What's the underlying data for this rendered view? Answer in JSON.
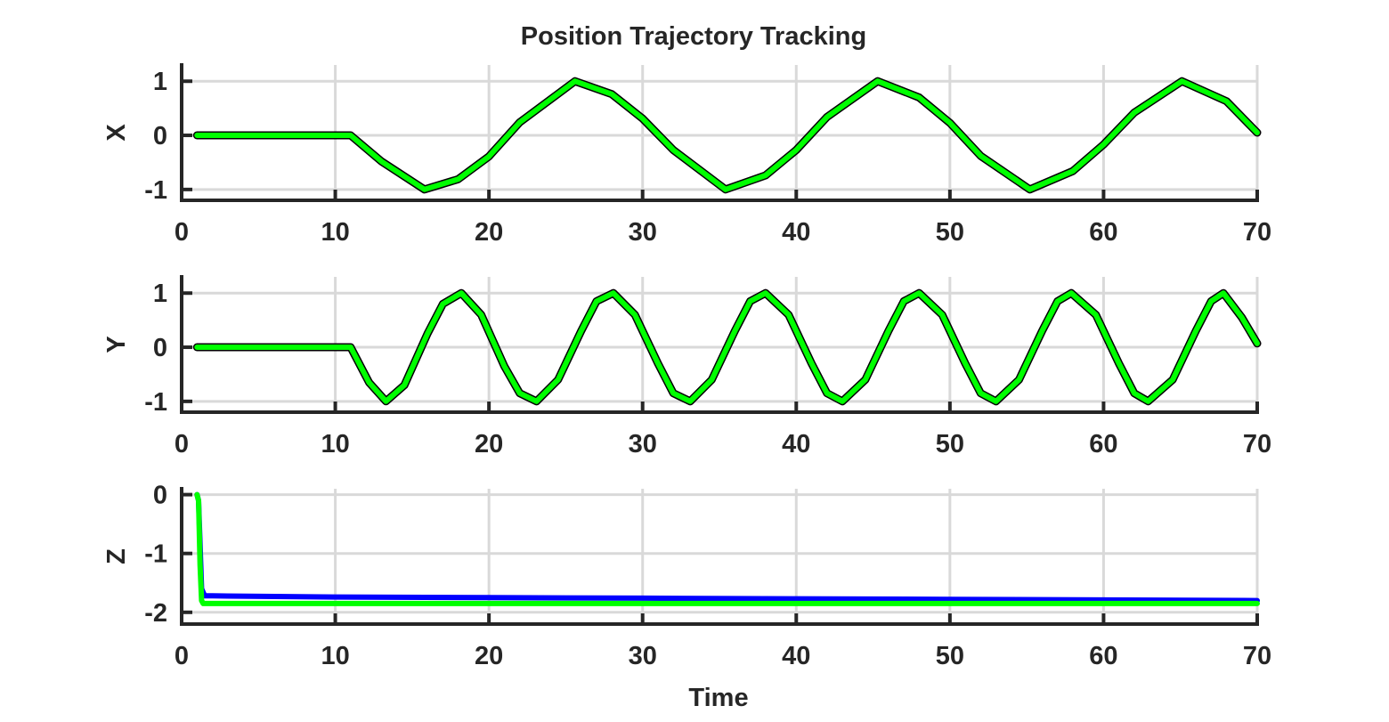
{
  "figure": {
    "title": "Position Trajectory Tracking",
    "xlabel": "Time"
  },
  "colors": {
    "reference": "#000000",
    "actual": "#00ff00",
    "z_reference": "#0000ff",
    "axes": "#262626",
    "grid": "#d9d9d9"
  },
  "chart_data": [
    {
      "type": "line",
      "ylabel": "X",
      "xlim": [
        0,
        70
      ],
      "ylim": [
        -1.2,
        1.3
      ],
      "xticks": [
        0,
        10,
        20,
        30,
        40,
        50,
        60,
        70
      ],
      "yticks": [
        -1,
        0,
        1
      ],
      "grid": true,
      "legend": "none",
      "series": [
        {
          "style": "reference (thin, behind)",
          "x": [
            1,
            11,
            13,
            15.8,
            18,
            20,
            22,
            25.6,
            28,
            30,
            32,
            35.4,
            38,
            40,
            42,
            45.3,
            48,
            50,
            52,
            55.2,
            58,
            60,
            62,
            65.1,
            68,
            70
          ],
          "y": [
            0,
            0,
            -0.48,
            -1,
            -0.81,
            -0.39,
            0.24,
            1,
            0.76,
            0.31,
            -0.27,
            -1,
            -0.74,
            -0.27,
            0.34,
            1,
            0.7,
            0.23,
            -0.38,
            -1,
            -0.66,
            -0.17,
            0.42,
            1,
            0.63,
            0.05
          ]
        },
        {
          "style": "actual (thick, green)",
          "x": [
            1,
            11,
            13,
            15.8,
            18,
            20,
            22,
            25.6,
            28,
            30,
            32,
            35.4,
            38,
            40,
            42,
            45.3,
            48,
            50,
            52,
            55.2,
            58,
            60,
            62,
            65.1,
            68,
            70
          ],
          "y": [
            0,
            0,
            -0.48,
            -1,
            -0.81,
            -0.39,
            0.24,
            1,
            0.76,
            0.31,
            -0.27,
            -1,
            -0.74,
            -0.27,
            0.34,
            1,
            0.7,
            0.23,
            -0.38,
            -1,
            -0.66,
            -0.17,
            0.42,
            1,
            0.63,
            0.05
          ]
        }
      ]
    },
    {
      "type": "line",
      "ylabel": "Y",
      "xlim": [
        0,
        70
      ],
      "ylim": [
        -1.2,
        1.3
      ],
      "xticks": [
        0,
        10,
        20,
        30,
        40,
        50,
        60,
        70
      ],
      "yticks": [
        -1,
        0,
        1
      ],
      "grid": true,
      "legend": "none",
      "series": [
        {
          "style": "reference (thin, behind)",
          "x": [
            1,
            11,
            12.2,
            13.3,
            14.5,
            16,
            17,
            18.2,
            19.5,
            21,
            22,
            23.1,
            24.5,
            26,
            27,
            28.1,
            29.5,
            31,
            32,
            33.1,
            34.5,
            36,
            37,
            38,
            39.5,
            41,
            42,
            43,
            44.5,
            46,
            47,
            48,
            49.5,
            51,
            52,
            53,
            54.5,
            56,
            57,
            57.9,
            59.5,
            61,
            62,
            62.9,
            64.5,
            66,
            67,
            67.8,
            69,
            70
          ],
          "y": [
            0,
            0,
            -0.65,
            -1,
            -0.7,
            0.25,
            0.8,
            1,
            0.6,
            -0.35,
            -0.85,
            -1,
            -0.6,
            0.3,
            0.85,
            1,
            0.6,
            -0.3,
            -0.85,
            -1,
            -0.6,
            0.3,
            0.85,
            1,
            0.6,
            -0.3,
            -0.85,
            -1,
            -0.6,
            0.3,
            0.85,
            1,
            0.6,
            -0.3,
            -0.85,
            -1,
            -0.6,
            0.3,
            0.85,
            1,
            0.6,
            -0.3,
            -0.85,
            -1,
            -0.6,
            0.3,
            0.85,
            1,
            0.55,
            0.07
          ]
        },
        {
          "style": "actual (thick, green)",
          "x": [
            1,
            11,
            12.2,
            13.3,
            14.5,
            16,
            17,
            18.2,
            19.5,
            21,
            22,
            23.1,
            24.5,
            26,
            27,
            28.1,
            29.5,
            31,
            32,
            33.1,
            34.5,
            36,
            37,
            38,
            39.5,
            41,
            42,
            43,
            44.5,
            46,
            47,
            48,
            49.5,
            51,
            52,
            53,
            54.5,
            56,
            57,
            57.9,
            59.5,
            61,
            62,
            62.9,
            64.5,
            66,
            67,
            67.8,
            69,
            70
          ],
          "y": [
            0,
            0,
            -0.65,
            -1,
            -0.7,
            0.25,
            0.8,
            1,
            0.6,
            -0.35,
            -0.85,
            -1,
            -0.6,
            0.3,
            0.85,
            1,
            0.6,
            -0.3,
            -0.85,
            -1,
            -0.6,
            0.3,
            0.85,
            1,
            0.6,
            -0.3,
            -0.85,
            -1,
            -0.6,
            0.3,
            0.85,
            1,
            0.6,
            -0.3,
            -0.85,
            -1,
            -0.6,
            0.3,
            0.85,
            1,
            0.6,
            -0.3,
            -0.85,
            -1,
            -0.6,
            0.3,
            0.85,
            1,
            0.55,
            0.07
          ]
        }
      ]
    },
    {
      "type": "line",
      "ylabel": "Z",
      "xlim": [
        0,
        70
      ],
      "ylim": [
        -2.2,
        0.1
      ],
      "xticks": [
        0,
        10,
        20,
        30,
        40,
        50,
        60,
        70
      ],
      "yticks": [
        -2,
        -1,
        0
      ],
      "grid": true,
      "legend": "none",
      "series": [
        {
          "style": "reference (blue)",
          "x": [
            1,
            1.1,
            1.3,
            1.5,
            2,
            10,
            20,
            30,
            40,
            50,
            60,
            70
          ],
          "y": [
            0,
            -0.1,
            -1.6,
            -1.72,
            -1.72,
            -1.74,
            -1.75,
            -1.76,
            -1.77,
            -1.78,
            -1.79,
            -1.8
          ]
        },
        {
          "style": "actual (thick, green)",
          "x": [
            1,
            1.1,
            1.2,
            1.3,
            1.4,
            1.6,
            2,
            10,
            20,
            30,
            40,
            50,
            60,
            70
          ],
          "y": [
            0,
            -0.1,
            -1.2,
            -1.8,
            -1.85,
            -1.85,
            -1.85,
            -1.85,
            -1.85,
            -1.85,
            -1.85,
            -1.85,
            -1.85,
            -1.85
          ]
        }
      ]
    }
  ]
}
